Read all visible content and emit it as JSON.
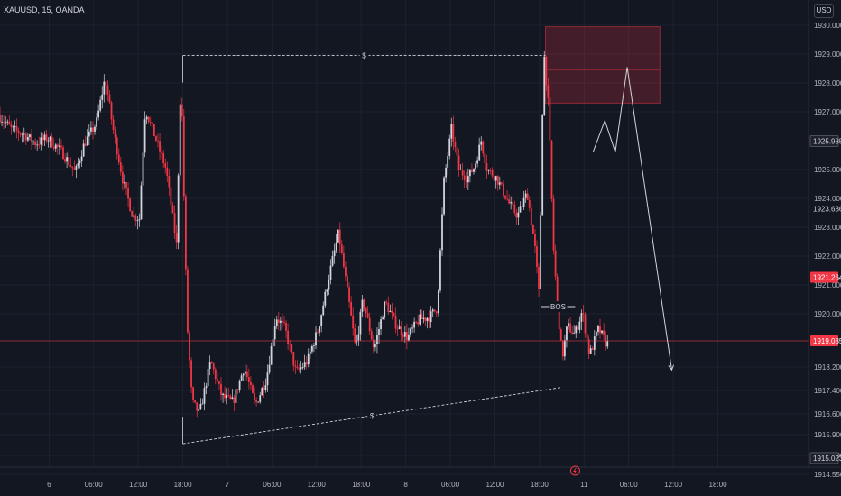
{
  "header": {
    "symbol": "XAUUSD, 15, OANDA",
    "currency": "USD"
  },
  "chart_data": {
    "type": "candlestick",
    "colors": {
      "up": "#d1d4dc",
      "down": "#f23645",
      "background": "#131722",
      "grid": "#1e222d",
      "zone": "#f23645"
    },
    "ylim": [
      1914.55,
      1930.25
    ],
    "y_ticks": [
      1930,
      1929,
      1928,
      1927,
      1925,
      1924,
      1923,
      1922,
      1921,
      1920,
      1918.2,
      1917.4,
      1916.6,
      1915.9,
      1915.1,
      1914.55
    ],
    "y_tick_labels": [
      "1930.000",
      "1929.000",
      "1928.000",
      "1927.000",
      "1925.000",
      "1924.000",
      "1923.000",
      "1922.000",
      "1921.000",
      "1920.000",
      "1918.200",
      "1917.400",
      "1916.600",
      "1915.900",
      "1915.100",
      "1914.550"
    ],
    "x_range_hours": [
      -6.6,
      102.2
    ],
    "x_ticks": [
      {
        "hour": 0,
        "label": "6"
      },
      {
        "hour": 6,
        "label": "06:00"
      },
      {
        "hour": 12,
        "label": "12:00"
      },
      {
        "hour": 18,
        "label": "18:00"
      },
      {
        "hour": 24,
        "label": "7"
      },
      {
        "hour": 30,
        "label": "06:00"
      },
      {
        "hour": 36,
        "label": "12:00"
      },
      {
        "hour": 42,
        "label": "18:00"
      },
      {
        "hour": 48,
        "label": "8"
      },
      {
        "hour": 54,
        "label": "06:00"
      },
      {
        "hour": 60,
        "label": "12:00"
      },
      {
        "hour": 66,
        "label": "18:00"
      },
      {
        "hour": 72,
        "label": "11"
      },
      {
        "hour": 78,
        "label": "06:00"
      },
      {
        "hour": 84,
        "label": "12:00"
      },
      {
        "hour": 90,
        "label": "18:00"
      }
    ],
    "price_path": [
      [
        -6.6,
        1926.9
      ],
      [
        -4.8,
        1926.4
      ],
      [
        -3,
        1926.2
      ],
      [
        -1.5,
        1925.9
      ],
      [
        0,
        1926.1
      ],
      [
        2,
        1925.6
      ],
      [
        3.8,
        1924.9
      ],
      [
        5,
        1925.9
      ],
      [
        6.6,
        1926.6
      ],
      [
        7.8,
        1928.2
      ],
      [
        8.8,
        1926.5
      ],
      [
        10.2,
        1924.6
      ],
      [
        11.5,
        1923.4
      ],
      [
        12.4,
        1923.3
      ],
      [
        13.2,
        1927.1
      ],
      [
        14.7,
        1926.0
      ],
      [
        16,
        1925.0
      ],
      [
        17.4,
        1922.4
      ],
      [
        18,
        1928.4
      ],
      [
        18.8,
        1919.8
      ],
      [
        19.5,
        1917.0
      ],
      [
        20.5,
        1916.6
      ],
      [
        22,
        1918.4
      ],
      [
        23.5,
        1917.2
      ],
      [
        25,
        1917.0
      ],
      [
        26.5,
        1918.2
      ],
      [
        28,
        1916.9
      ],
      [
        29.5,
        1917.8
      ],
      [
        30.8,
        1919.9
      ],
      [
        32,
        1919.5
      ],
      [
        33.5,
        1918.0
      ],
      [
        35,
        1918.4
      ],
      [
        36.5,
        1919.5
      ],
      [
        38,
        1921.4
      ],
      [
        39.2,
        1922.8
      ],
      [
        40.5,
        1920.6
      ],
      [
        41.5,
        1918.8
      ],
      [
        42.5,
        1920.5
      ],
      [
        44,
        1918.8
      ],
      [
        45.5,
        1920.4
      ],
      [
        47,
        1919.6
      ],
      [
        48.5,
        1919.2
      ],
      [
        50,
        1919.8
      ],
      [
        51.5,
        1919.9
      ],
      [
        52.5,
        1920.2
      ],
      [
        53.4,
        1924.6
      ],
      [
        54.4,
        1926.4
      ],
      [
        55.4,
        1925.0
      ],
      [
        56.5,
        1924.7
      ],
      [
        57.5,
        1925.1
      ],
      [
        58.4,
        1926.0
      ],
      [
        59.2,
        1925.0
      ],
      [
        60.5,
        1924.7
      ],
      [
        62.2,
        1923.8
      ],
      [
        63.3,
        1923.4
      ],
      [
        64.6,
        1924.2
      ],
      [
        65.6,
        1922.4
      ],
      [
        66.2,
        1920.6
      ],
      [
        66.8,
        1929.2
      ],
      [
        67.5,
        1927.0
      ],
      [
        68.1,
        1922.4
      ],
      [
        68.6,
        1920.5
      ],
      [
        69.3,
        1918.5
      ],
      [
        70,
        1919.6
      ],
      [
        71,
        1919.3
      ],
      [
        72,
        1920.1
      ],
      [
        73,
        1918.6
      ],
      [
        74.2,
        1919.5
      ],
      [
        75.2,
        1919.0
      ]
    ],
    "current_price": 1919.085,
    "price_badges": [
      {
        "value": 1925.985,
        "label": "1925.985",
        "style": "dark"
      },
      {
        "value": 1923.636,
        "label": "1923.636",
        "style": "plain"
      },
      {
        "value": 1921.264,
        "label": "1921.264",
        "style": "red"
      },
      {
        "value": 1919.085,
        "label": "1919.085",
        "style": "red"
      },
      {
        "value": 1915.023,
        "label": "1915.023",
        "style": "dark"
      }
    ],
    "supply_zone": {
      "x_start_hour": 66.8,
      "x_end_hour": 82.2,
      "y_top": 1929.95,
      "y_bottom": 1927.3,
      "mid": 1928.45
    },
    "annotations": [
      {
        "type": "dashed-line",
        "label": "$",
        "from": [
          18.0,
          1928.95
        ],
        "to": [
          66.8,
          1928.95
        ]
      },
      {
        "type": "dashed-line",
        "label": "$",
        "from": [
          18.0,
          1915.55
        ],
        "to": [
          68.9,
          1917.5
        ]
      },
      {
        "type": "bos-line",
        "label": "BOS",
        "y": 1920.25,
        "x_start_hour": 66.2,
        "x_end_hour": 70.8
      },
      {
        "type": "projection",
        "path": [
          [
            73.2,
            1925.6
          ],
          [
            74.8,
            1926.7
          ],
          [
            76.2,
            1925.6
          ],
          [
            77.8,
            1928.55
          ],
          [
            83.8,
            1918.1
          ]
        ]
      }
    ]
  }
}
